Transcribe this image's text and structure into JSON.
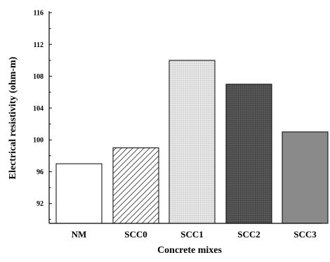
{
  "chart_data": {
    "type": "bar",
    "title": "",
    "xlabel": "Concrete mixes",
    "ylabel": "Electrical resistivity (ohm-m)",
    "categories": [
      "NM",
      "SCC0",
      "SCC1",
      "SCC2",
      "SCC3"
    ],
    "values": [
      97,
      99,
      110,
      107,
      101
    ],
    "ylim": [
      89.5,
      116
    ],
    "yticks": [
      92,
      96,
      100,
      104,
      108,
      112,
      116
    ],
    "grid": false,
    "legend": "none",
    "bar_styles": [
      {
        "category": "NM",
        "fill": "#ffffff",
        "pattern": "none"
      },
      {
        "category": "SCC0",
        "fill": "#ffffff",
        "pattern": "diagonal-hatch"
      },
      {
        "category": "SCC1",
        "fill": "#e6e6e6",
        "pattern": "fine-grid"
      },
      {
        "category": "SCC2",
        "fill": "#555555",
        "pattern": "fine-grid"
      },
      {
        "category": "SCC3",
        "fill": "#8a8a8a",
        "pattern": "none"
      }
    ]
  }
}
